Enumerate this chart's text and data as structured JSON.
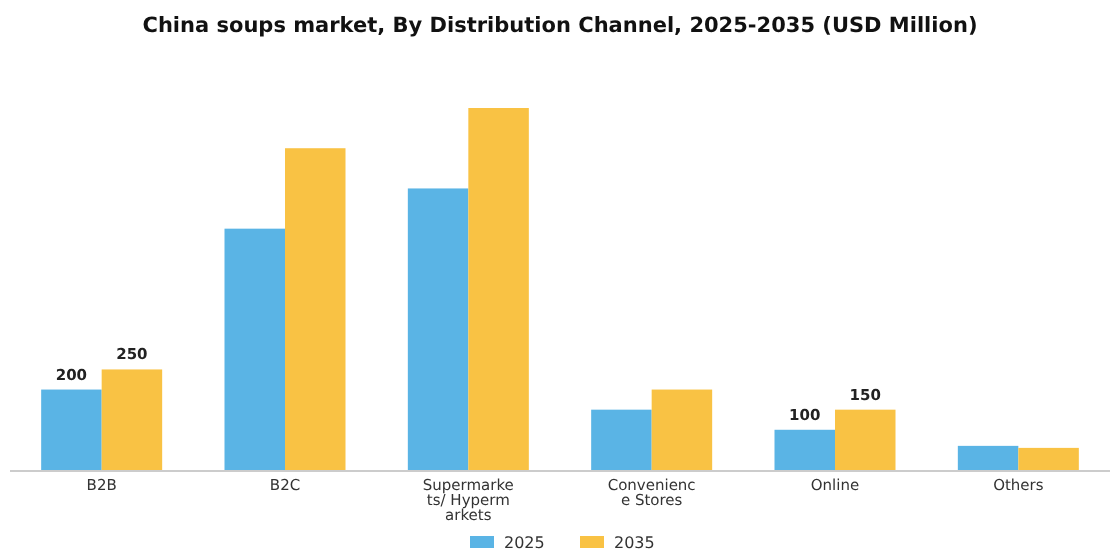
{
  "chart_data": {
    "type": "bar",
    "title": "China soups market, By Distribution Channel, 2025-2035 (USD Million)",
    "categories": [
      "B2B",
      "B2C",
      "Supermarke\nts/ Hyperm\narkets",
      "Convenienc\ne Stores",
      "Online",
      "Others"
    ],
    "series": [
      {
        "name": "2025",
        "color": "#5ab4e5",
        "values": [
          200,
          600,
          700,
          150,
          100,
          60
        ],
        "value_labels": [
          "200",
          null,
          null,
          null,
          "100",
          null
        ]
      },
      {
        "name": "2035",
        "color": "#f9c244",
        "values": [
          250,
          800,
          900,
          200,
          150,
          55
        ],
        "value_labels": [
          "250",
          null,
          null,
          null,
          "150",
          null
        ]
      }
    ],
    "legend": "bottom"
  }
}
